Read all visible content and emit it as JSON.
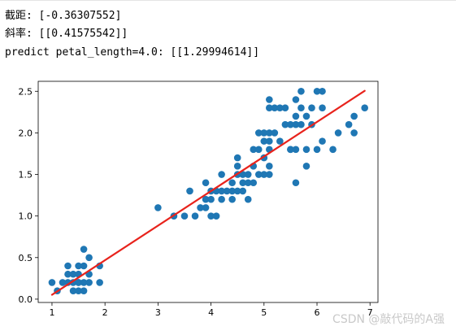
{
  "output": {
    "intercept_line": "截距: [-0.36307552]",
    "slope_line": "斜率: [[0.41575542]]",
    "predict_line": "predict petal_length=4.0: [[1.29994614]]"
  },
  "chart_data": {
    "type": "scatter",
    "title": "",
    "xlabel": "",
    "ylabel": "",
    "xlim": [
      0.74,
      7.15
    ],
    "ylim": [
      -0.04,
      2.62
    ],
    "xticks": [
      "1",
      "2",
      "3",
      "4",
      "5",
      "6",
      "7"
    ],
    "yticks": [
      "0.0",
      "0.5",
      "1.0",
      "1.5",
      "2.0",
      "2.5"
    ],
    "grid": false,
    "colors": {
      "points": "#1f77b4",
      "fit_line": "#e8231c"
    },
    "fit_line": {
      "slope": 0.41575542,
      "intercept": -0.36307552,
      "x": [
        1.0,
        6.9
      ]
    },
    "points": [
      [
        1.0,
        0.2
      ],
      [
        1.1,
        0.1
      ],
      [
        1.2,
        0.2
      ],
      [
        1.3,
        0.2
      ],
      [
        1.3,
        0.3
      ],
      [
        1.3,
        0.4
      ],
      [
        1.4,
        0.2
      ],
      [
        1.4,
        0.3
      ],
      [
        1.4,
        0.1
      ],
      [
        1.5,
        0.2
      ],
      [
        1.5,
        0.4
      ],
      [
        1.5,
        0.1
      ],
      [
        1.5,
        0.3
      ],
      [
        1.6,
        0.2
      ],
      [
        1.6,
        0.4
      ],
      [
        1.6,
        0.6
      ],
      [
        1.7,
        0.2
      ],
      [
        1.7,
        0.3
      ],
      [
        1.7,
        0.5
      ],
      [
        1.9,
        0.2
      ],
      [
        1.9,
        0.4
      ],
      [
        1.6,
        0.1
      ],
      [
        1.5,
        0.2
      ],
      [
        3.0,
        1.1
      ],
      [
        3.3,
        1.0
      ],
      [
        3.5,
        1.0
      ],
      [
        3.6,
        1.3
      ],
      [
        3.7,
        1.0
      ],
      [
        3.8,
        1.1
      ],
      [
        3.9,
        1.1
      ],
      [
        3.9,
        1.2
      ],
      [
        3.9,
        1.4
      ],
      [
        4.0,
        1.0
      ],
      [
        4.0,
        1.2
      ],
      [
        4.0,
        1.3
      ],
      [
        4.1,
        1.0
      ],
      [
        4.1,
        1.3
      ],
      [
        4.2,
        1.2
      ],
      [
        4.2,
        1.3
      ],
      [
        4.2,
        1.5
      ],
      [
        4.3,
        1.3
      ],
      [
        4.4,
        1.2
      ],
      [
        4.4,
        1.3
      ],
      [
        4.4,
        1.4
      ],
      [
        4.5,
        1.3
      ],
      [
        4.5,
        1.5
      ],
      [
        4.5,
        1.6
      ],
      [
        4.5,
        1.7
      ],
      [
        4.6,
        1.3
      ],
      [
        4.6,
        1.4
      ],
      [
        4.6,
        1.5
      ],
      [
        4.7,
        1.2
      ],
      [
        4.7,
        1.4
      ],
      [
        4.7,
        1.5
      ],
      [
        4.8,
        1.4
      ],
      [
        4.8,
        1.8
      ],
      [
        4.8,
        1.6
      ],
      [
        4.9,
        1.5
      ],
      [
        4.9,
        1.8
      ],
      [
        4.9,
        2.0
      ],
      [
        5.0,
        1.5
      ],
      [
        5.0,
        1.7
      ],
      [
        5.0,
        1.9
      ],
      [
        5.0,
        2.0
      ],
      [
        5.1,
        1.5
      ],
      [
        5.1,
        1.6
      ],
      [
        5.1,
        1.8
      ],
      [
        5.1,
        1.9
      ],
      [
        5.1,
        2.0
      ],
      [
        5.1,
        2.3
      ],
      [
        5.1,
        2.4
      ],
      [
        5.2,
        2.0
      ],
      [
        5.2,
        2.3
      ],
      [
        5.3,
        1.9
      ],
      [
        5.3,
        2.3
      ],
      [
        5.4,
        2.1
      ],
      [
        5.4,
        2.3
      ],
      [
        5.5,
        1.8
      ],
      [
        5.5,
        2.1
      ],
      [
        5.5,
        1.8
      ],
      [
        5.6,
        1.4
      ],
      [
        5.6,
        1.8
      ],
      [
        5.6,
        2.1
      ],
      [
        5.6,
        2.2
      ],
      [
        5.6,
        2.4
      ],
      [
        5.7,
        2.1
      ],
      [
        5.7,
        2.3
      ],
      [
        5.7,
        2.5
      ],
      [
        5.8,
        1.6
      ],
      [
        5.8,
        1.8
      ],
      [
        5.8,
        2.2
      ],
      [
        5.9,
        2.1
      ],
      [
        5.9,
        2.3
      ],
      [
        6.0,
        1.8
      ],
      [
        6.0,
        2.5
      ],
      [
        6.1,
        1.9
      ],
      [
        6.1,
        2.3
      ],
      [
        6.1,
        2.5
      ],
      [
        6.3,
        1.8
      ],
      [
        6.4,
        2.0
      ],
      [
        6.6,
        2.1
      ],
      [
        6.7,
        2.0
      ],
      [
        6.7,
        2.2
      ],
      [
        6.9,
        2.3
      ]
    ]
  },
  "watermark": "CSDN @敲代码的A强"
}
